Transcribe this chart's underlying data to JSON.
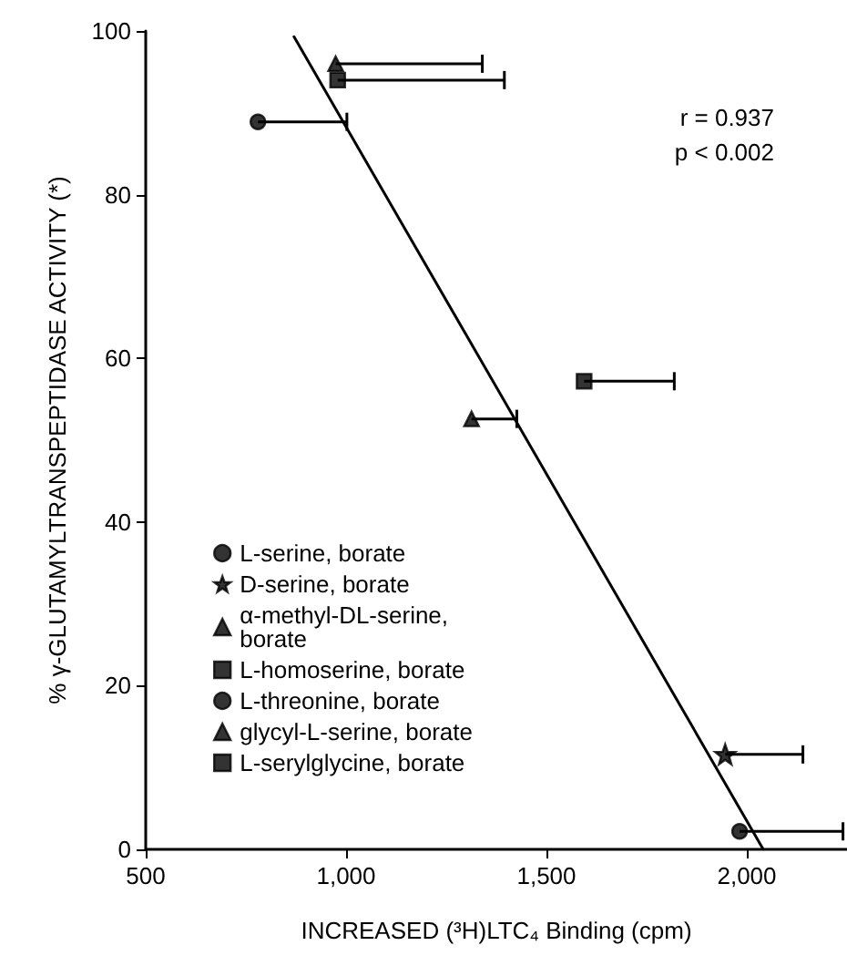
{
  "chart_data": {
    "type": "scatter",
    "xlabel": "INCREASED (³H)LTC₄ Binding (cpm)",
    "ylabel": "% γ-GLUTAMYLTRANSPEPTIDASE ACTIVITY (*)",
    "annotations": [
      "r = 0.937",
      "p < 0.002"
    ],
    "xlim": [
      500,
      2250
    ],
    "xticks": [
      500,
      {
        "value": 1000,
        "label": "1,000"
      },
      {
        "value": 1500,
        "label": "1,500"
      },
      {
        "value": 2000,
        "label": "2,000"
      }
    ],
    "ylim": [
      0,
      100
    ],
    "yticks": [
      0,
      20,
      40,
      60,
      80,
      100
    ],
    "grid": false,
    "legend": "bottom left",
    "series": [
      {
        "name": "L-serine, borate",
        "color": "#000000",
        "marker": "circle",
        "x": [
          1982
        ],
        "values": [
          2.2
        ],
        "xerrors": [
          [
            1982,
            2240
          ]
        ]
      },
      {
        "name": "D-serine, borate",
        "color": "#000000",
        "marker": "star",
        "x": [
          1946
        ],
        "values": [
          11.6
        ],
        "xerrors": [
          [
            1946,
            2140
          ]
        ]
      },
      {
        "name": "α-methyl-DL-serine, borate",
        "color": "#000000",
        "marker": "triangle",
        "x": [
          1313
        ],
        "values": [
          52.6
        ],
        "xerrors": [
          [
            1313,
            1426
          ]
        ]
      },
      {
        "name": "L-homoserine, borate",
        "color": "#000000",
        "marker": "square",
        "x": [
          1594
        ],
        "values": [
          57.2
        ],
        "xerrors": [
          [
            1594,
            1819
          ]
        ]
      },
      {
        "name": "L-threonine, borate",
        "color": "#000000",
        "marker": "circle",
        "x": [
          780
        ],
        "values": [
          88.9
        ],
        "xerrors": [
          [
            780,
            1002
          ]
        ]
      },
      {
        "name": "glycyl-L-serine, borate",
        "color": "#000000",
        "marker": "triangle",
        "x": [
          974
        ],
        "values": [
          96.0
        ],
        "xerrors": [
          [
            974,
            1340
          ]
        ]
      },
      {
        "name": "L-serylglycine, borate",
        "color": "#000000",
        "marker": "square",
        "x": [
          979
        ],
        "values": [
          94.0
        ],
        "xerrors": [
          [
            979,
            1395
          ]
        ]
      },
      {
        "type": "line",
        "color": "#000000",
        "marker": "none",
        "line_style": "solid",
        "x": [
          870,
          2041
        ],
        "values": [
          99.3,
          0
        ]
      }
    ]
  }
}
